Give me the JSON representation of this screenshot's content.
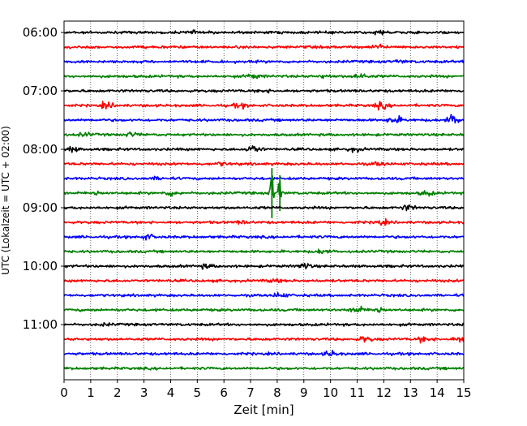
{
  "chart_data": {
    "type": "line",
    "title": "",
    "xlabel": "Zeit  [min]",
    "ylabel": "UTC (Lokalzeit = UTC + 02:00)",
    "xlim": [
      0,
      15
    ],
    "x_ticks": [
      0,
      1,
      2,
      3,
      4,
      5,
      6,
      7,
      8,
      9,
      10,
      11,
      12,
      13,
      14,
      15
    ],
    "grid": "vertical dotted",
    "legend": "none",
    "trace_interval_minutes": 15,
    "start_time": "06:00",
    "y_tick_labels": [
      "06:00",
      "07:00",
      "08:00",
      "09:00",
      "10:00",
      "11:00"
    ],
    "trace_color_cycle": [
      "#000000",
      "#ff0000",
      "#0000ff",
      "#008000"
    ],
    "traces": [
      {
        "start": "06:00",
        "events": [
          {
            "t": 4.8,
            "amp": 0.6
          },
          {
            "t": 11.9,
            "amp": 0.9
          }
        ]
      },
      {
        "start": "06:15",
        "events": [
          {
            "t": 11.8,
            "amp": 1.0
          }
        ]
      },
      {
        "start": "06:30",
        "events": [
          {
            "t": 12.6,
            "amp": 0.5
          }
        ]
      },
      {
        "start": "06:45",
        "events": [
          {
            "t": 7.1,
            "amp": 1.0
          },
          {
            "t": 9.8,
            "amp": 0.6
          },
          {
            "t": 11.1,
            "amp": 1.4
          }
        ]
      },
      {
        "start": "07:00",
        "events": [
          {
            "t": 7.5,
            "amp": 0.5
          }
        ]
      },
      {
        "start": "07:15",
        "events": [
          {
            "t": 1.6,
            "amp": 1.2
          },
          {
            "t": 6.6,
            "amp": 0.9
          },
          {
            "t": 11.9,
            "amp": 1.3
          }
        ]
      },
      {
        "start": "07:30",
        "events": [
          {
            "t": 12.4,
            "amp": 1.7
          },
          {
            "t": 14.6,
            "amp": 2.2
          }
        ]
      },
      {
        "start": "07:45",
        "events": [
          {
            "t": 0.8,
            "amp": 0.7
          },
          {
            "t": 2.5,
            "amp": 0.9
          }
        ]
      },
      {
        "start": "08:00",
        "events": [
          {
            "t": 0.3,
            "amp": 1.0
          },
          {
            "t": 7.1,
            "amp": 1.8
          },
          {
            "t": 10.9,
            "amp": 0.8
          }
        ]
      },
      {
        "start": "08:15",
        "events": [
          {
            "t": 5.9,
            "amp": 0.6
          },
          {
            "t": 11.8,
            "amp": 0.7
          }
        ]
      },
      {
        "start": "08:30",
        "events": [
          {
            "t": 3.5,
            "amp": 0.5
          }
        ]
      },
      {
        "start": "08:45",
        "events": [
          {
            "t": 1.2,
            "amp": 0.8
          },
          {
            "t": 4.0,
            "amp": 1.0
          },
          {
            "t": 7.8,
            "amp": 7.0
          },
          {
            "t": 8.1,
            "amp": 5.0
          },
          {
            "t": 13.6,
            "amp": 1.0
          }
        ]
      },
      {
        "start": "09:00",
        "events": [
          {
            "t": 12.9,
            "amp": 1.2
          }
        ]
      },
      {
        "start": "09:15",
        "events": [
          {
            "t": 6.7,
            "amp": 0.6
          },
          {
            "t": 11.9,
            "amp": 1.0
          }
        ]
      },
      {
        "start": "09:30",
        "events": [
          {
            "t": 3.1,
            "amp": 1.1
          }
        ]
      },
      {
        "start": "09:45",
        "events": [
          {
            "t": 9.7,
            "amp": 0.9
          }
        ]
      },
      {
        "start": "10:00",
        "events": [
          {
            "t": 5.3,
            "amp": 0.8
          },
          {
            "t": 9.0,
            "amp": 1.3
          }
        ]
      },
      {
        "start": "10:15",
        "events": [
          {
            "t": 7.9,
            "amp": 0.6
          }
        ]
      },
      {
        "start": "10:30",
        "events": [
          {
            "t": 8.1,
            "amp": 1.1
          }
        ]
      },
      {
        "start": "10:45",
        "events": [
          {
            "t": 11.0,
            "amp": 1.5
          },
          {
            "t": 11.8,
            "amp": 1.3
          }
        ]
      },
      {
        "start": "11:00",
        "events": [
          {
            "t": 1.5,
            "amp": 0.4
          }
        ]
      },
      {
        "start": "11:15",
        "events": [
          {
            "t": 11.3,
            "amp": 1.2
          },
          {
            "t": 13.5,
            "amp": 1.1
          },
          {
            "t": 14.8,
            "amp": 0.9
          }
        ]
      },
      {
        "start": "11:30",
        "events": [
          {
            "t": 10.0,
            "amp": 1.2
          }
        ]
      },
      {
        "start": "11:45",
        "events": []
      }
    ]
  }
}
